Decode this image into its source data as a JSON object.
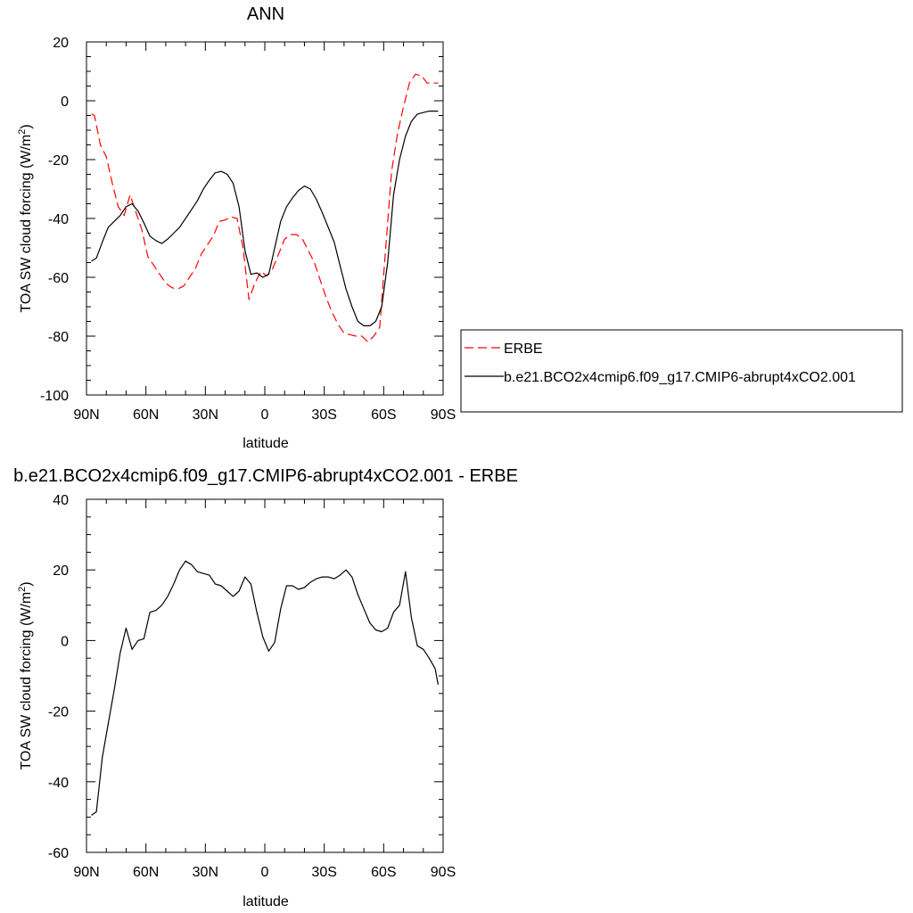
{
  "chart_data": [
    {
      "type": "line",
      "title": "ANN",
      "xlabel": "latitude",
      "ylabel": "TOA SW cloud forcing (W/m",
      "ylabel_sup": "2",
      "ylabel_tail": ")",
      "xlim": [
        90,
        -90
      ],
      "ylim": [
        -100,
        20
      ],
      "x_ticks": [
        {
          "value": 90,
          "label": "90N"
        },
        {
          "value": 60,
          "label": "60N"
        },
        {
          "value": 30,
          "label": "30N"
        },
        {
          "value": 0,
          "label": "0"
        },
        {
          "value": -30,
          "label": "30S"
        },
        {
          "value": -60,
          "label": "60S"
        },
        {
          "value": -90,
          "label": "90S"
        }
      ],
      "y_ticks": [
        {
          "value": 20,
          "label": "20"
        },
        {
          "value": 0,
          "label": "0"
        },
        {
          "value": -20,
          "label": "-20"
        },
        {
          "value": -40,
          "label": "-40"
        },
        {
          "value": -60,
          "label": "-60"
        },
        {
          "value": -80,
          "label": "-80"
        },
        {
          "value": -100,
          "label": "-100"
        }
      ],
      "grid": false,
      "legend_position": "right",
      "series": [
        {
          "name": "ERBE",
          "color": "#ff0000",
          "dash": "dashed",
          "x": [
            87.5,
            86,
            83,
            80,
            77,
            74,
            71,
            68,
            65,
            62,
            59,
            56,
            53,
            50,
            47,
            44,
            41,
            38,
            35,
            32,
            29,
            26,
            23,
            20,
            17,
            14,
            11,
            8,
            5,
            2,
            -1,
            -4,
            -7,
            -10,
            -13,
            -16,
            -19,
            -22,
            -25,
            -28,
            -31,
            -34,
            -37,
            -40,
            -43,
            -46,
            -49,
            -52,
            -55,
            -58,
            -61,
            -64,
            -67,
            -70,
            -73,
            -76,
            -79,
            -82,
            -85,
            -87.5
          ],
          "y": [
            -4.5,
            -5,
            -15,
            -19,
            -28,
            -36,
            -39,
            -32,
            -38,
            -44,
            -53,
            -56,
            -59,
            -62,
            -63.5,
            -64,
            -63,
            -60,
            -57,
            -52,
            -49,
            -46,
            -41,
            -40.5,
            -39.5,
            -40,
            -50,
            -67.5,
            -62,
            -58,
            -59.5,
            -57,
            -52,
            -47,
            -45.5,
            -45.5,
            -47,
            -51,
            -55,
            -61,
            -67,
            -72,
            -76,
            -79,
            -79.5,
            -80,
            -80,
            -82,
            -80,
            -77,
            -50,
            -24,
            -11,
            -2,
            6,
            9,
            8.5,
            6,
            6,
            6
          ]
        },
        {
          "name": "b.e21.BCO2x4cmip6.f09_g17.CMIP6-abrupt4xCO2.001",
          "color": "#000000",
          "dash": "solid",
          "x": [
            87.5,
            85,
            82,
            79,
            76,
            73,
            70,
            67,
            64,
            61,
            58,
            55,
            52,
            49,
            46,
            43,
            40,
            37,
            34,
            31,
            28,
            25,
            22,
            19,
            16,
            13,
            10,
            7,
            4,
            1,
            -2,
            -5,
            -8,
            -11,
            -14,
            -17,
            -20,
            -23,
            -26,
            -29,
            -32,
            -35,
            -38,
            -41,
            -44,
            -47,
            -50,
            -53,
            -56,
            -59,
            -62,
            -65,
            -68,
            -71,
            -74,
            -77,
            -80,
            -83,
            -86,
            -87.5
          ],
          "y": [
            -54.5,
            -53.5,
            -48,
            -43,
            -41,
            -39,
            -36,
            -35,
            -37.5,
            -41.5,
            -46,
            -47.5,
            -48.5,
            -47,
            -45,
            -43,
            -40,
            -37,
            -34,
            -30,
            -27,
            -24.5,
            -24,
            -25,
            -28,
            -36,
            -51,
            -59,
            -58.5,
            -60,
            -59,
            -50,
            -41,
            -36,
            -33,
            -30.5,
            -29,
            -30,
            -33.5,
            -38,
            -43,
            -48,
            -56,
            -64,
            -70,
            -75,
            -76.5,
            -76.5,
            -75,
            -70,
            -55,
            -32,
            -20,
            -12,
            -7,
            -4.5,
            -4,
            -3.5,
            -3.5,
            -3.5
          ]
        }
      ]
    },
    {
      "type": "line",
      "title": "b.e21.BCO2x4cmip6.f09_g17.CMIP6-abrupt4xCO2.001 - ERBE",
      "xlabel": "latitude",
      "ylabel": "TOA SW cloud forcing (W/m",
      "ylabel_sup": "2",
      "ylabel_tail": ")",
      "xlim": [
        90,
        -90
      ],
      "ylim": [
        -60,
        40
      ],
      "x_ticks": [
        {
          "value": 90,
          "label": "90N"
        },
        {
          "value": 60,
          "label": "60N"
        },
        {
          "value": 30,
          "label": "30N"
        },
        {
          "value": 0,
          "label": "0"
        },
        {
          "value": -30,
          "label": "30S"
        },
        {
          "value": -60,
          "label": "60S"
        },
        {
          "value": -90,
          "label": "90S"
        }
      ],
      "y_ticks": [
        {
          "value": 40,
          "label": "40"
        },
        {
          "value": 20,
          "label": "20"
        },
        {
          "value": 0,
          "label": "0"
        },
        {
          "value": -20,
          "label": "-20"
        },
        {
          "value": -40,
          "label": "-40"
        },
        {
          "value": -60,
          "label": "-60"
        }
      ],
      "grid": false,
      "series": [
        {
          "color": "#000000",
          "dash": "solid",
          "x": [
            87.5,
            85,
            82,
            79,
            76,
            73,
            70,
            67,
            64,
            61,
            58,
            55,
            52,
            49,
            46,
            43,
            40,
            37,
            34,
            31,
            28,
            25,
            22,
            19,
            16,
            13,
            10,
            7,
            4,
            1,
            -2,
            -5,
            -8,
            -11,
            -14,
            -17,
            -20,
            -23,
            -26,
            -29,
            -32,
            -35,
            -38,
            -41,
            -44,
            -47,
            -50,
            -53,
            -56,
            -59,
            -62,
            -65,
            -68,
            -71,
            -74,
            -77,
            -80,
            -83,
            -86,
            -87.5
          ],
          "y": [
            -49.5,
            -48.5,
            -33,
            -23.5,
            -14,
            -3.5,
            3.5,
            -2.5,
            0,
            0.5,
            8,
            8.5,
            10,
            12.5,
            16,
            20,
            22.5,
            21.5,
            19.5,
            19,
            18.5,
            16,
            15.5,
            14,
            12.5,
            14,
            18,
            16,
            8,
            1,
            -3,
            -0.5,
            9,
            15.5,
            15.5,
            14.5,
            15,
            16.5,
            17.5,
            18,
            18,
            17.5,
            18.5,
            20,
            18,
            13,
            9,
            5,
            3,
            2.5,
            3.5,
            8,
            10,
            19.5,
            6.5,
            -1.5,
            -2.5,
            -5,
            -8,
            -12.5
          ]
        }
      ]
    }
  ]
}
